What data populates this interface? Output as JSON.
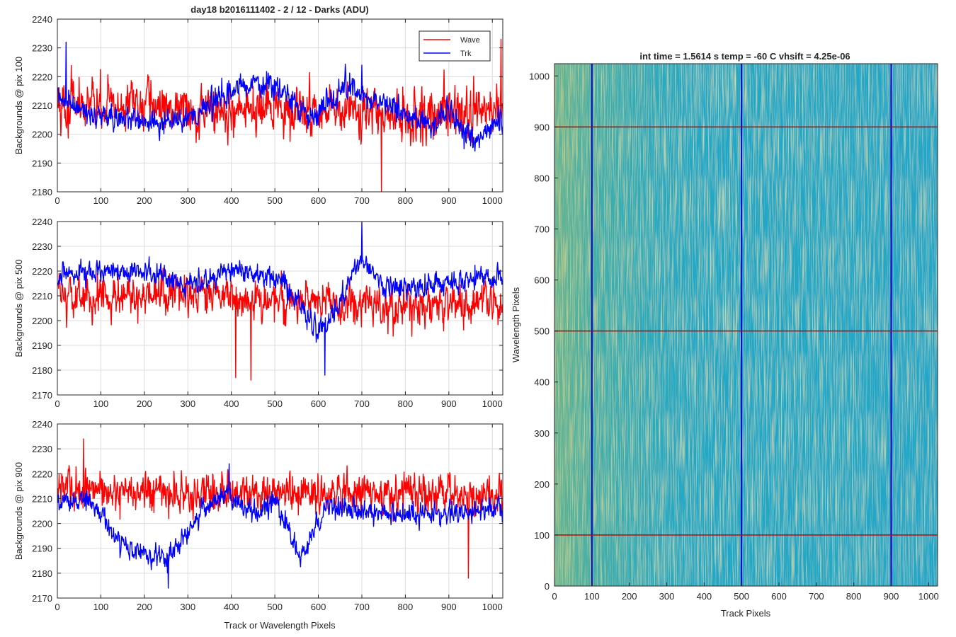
{
  "figure": {
    "title": "day18 b2016111402 - 2 / 12 - Darks (ADU)",
    "left_xlabel": "Track or Wavelength Pixels"
  },
  "chart_data": [
    {
      "type": "line",
      "ylabel": "Backgrounds @ pix 100",
      "xlim": [
        0,
        1024
      ],
      "ylim": [
        2180,
        2240
      ],
      "xticks": [
        0,
        100,
        200,
        300,
        400,
        500,
        600,
        700,
        800,
        900,
        1000
      ],
      "yticks": [
        2180,
        2190,
        2200,
        2210,
        2220,
        2230,
        2240
      ],
      "grid": true,
      "legend": {
        "placement": "top-right",
        "entries": [
          "Wave",
          "Trk"
        ]
      },
      "series": [
        {
          "name": "Wave",
          "color": "#ff0000",
          "mean": 2209,
          "noise": 8.5,
          "trend": [
            [
              0,
              2210
            ],
            [
              200,
              2210
            ],
            [
              400,
              2208
            ],
            [
              600,
              2208
            ],
            [
              800,
              2206
            ],
            [
              1024,
              2208
            ]
          ],
          "spikes": [
            [
              1020,
              2233
            ],
            [
              745,
              2180
            ]
          ]
        },
        {
          "name": "Trk",
          "color": "#0000ff",
          "mean": 2209,
          "noise": 4.5,
          "trend": [
            [
              0,
              2212
            ],
            [
              60,
              2208
            ],
            [
              150,
              2205
            ],
            [
              240,
              2204
            ],
            [
              330,
              2208
            ],
            [
              420,
              2217
            ],
            [
              500,
              2218
            ],
            [
              580,
              2205
            ],
            [
              660,
              2217
            ],
            [
              760,
              2210
            ],
            [
              850,
              2203
            ],
            [
              900,
              2208
            ],
            [
              960,
              2198
            ],
            [
              1024,
              2206
            ]
          ],
          "spikes": [
            [
              20,
              2232
            ],
            [
              700,
              2224
            ]
          ]
        }
      ]
    },
    {
      "type": "line",
      "ylabel": "Backgrounds @ pix 500",
      "xlim": [
        0,
        1024
      ],
      "ylim": [
        2170,
        2240
      ],
      "xticks": [
        0,
        100,
        200,
        300,
        400,
        500,
        600,
        700,
        800,
        900,
        1000
      ],
      "yticks": [
        2170,
        2180,
        2190,
        2200,
        2210,
        2220,
        2230,
        2240
      ],
      "grid": true,
      "series": [
        {
          "name": "Wave",
          "color": "#ff0000",
          "mean": 2208,
          "noise": 8,
          "trend": [
            [
              0,
              2210
            ],
            [
              300,
              2210
            ],
            [
              500,
              2208
            ],
            [
              700,
              2206
            ],
            [
              1024,
              2206
            ]
          ],
          "spikes": [
            [
              410,
              2177
            ],
            [
              445,
              2176
            ]
          ]
        },
        {
          "name": "Trk",
          "color": "#0000ff",
          "mean": 2215,
          "noise": 4.5,
          "trend": [
            [
              0,
              2218
            ],
            [
              100,
              2220
            ],
            [
              200,
              2220
            ],
            [
              300,
              2215
            ],
            [
              420,
              2220
            ],
            [
              520,
              2215
            ],
            [
              600,
              2196
            ],
            [
              650,
              2207
            ],
            [
              700,
              2226
            ],
            [
              750,
              2213
            ],
            [
              850,
              2214
            ],
            [
              1024,
              2218
            ]
          ],
          "spikes": [
            [
              700,
              2240
            ],
            [
              615,
              2178
            ]
          ]
        }
      ]
    },
    {
      "type": "line",
      "ylabel": "Backgrounds @ pix 900",
      "xlabel": "Track or Wavelength Pixels",
      "xlim": [
        0,
        1024
      ],
      "ylim": [
        2170,
        2240
      ],
      "xticks": [
        0,
        100,
        200,
        300,
        400,
        500,
        600,
        700,
        800,
        900,
        1000
      ],
      "yticks": [
        2170,
        2180,
        2190,
        2200,
        2210,
        2220,
        2230,
        2240
      ],
      "grid": true,
      "series": [
        {
          "name": "Wave",
          "color": "#ff0000",
          "mean": 2212,
          "noise": 8,
          "trend": [
            [
              0,
              2214
            ],
            [
              300,
              2212
            ],
            [
              600,
              2212
            ],
            [
              1024,
              2212
            ]
          ],
          "spikes": [
            [
              60,
              2234
            ],
            [
              945,
              2178
            ]
          ]
        },
        {
          "name": "Trk",
          "color": "#0000ff",
          "mean": 2203,
          "noise": 4.5,
          "trend": [
            [
              0,
              2208
            ],
            [
              80,
              2210
            ],
            [
              140,
              2192
            ],
            [
              200,
              2187
            ],
            [
              250,
              2186
            ],
            [
              320,
              2202
            ],
            [
              390,
              2212
            ],
            [
              450,
              2204
            ],
            [
              500,
              2210
            ],
            [
              560,
              2186
            ],
            [
              620,
              2207
            ],
            [
              680,
              2205
            ],
            [
              800,
              2203
            ],
            [
              1024,
              2206
            ]
          ],
          "spikes": [
            [
              255,
              2174
            ],
            [
              395,
              2224
            ]
          ]
        }
      ]
    },
    {
      "type": "heatmap",
      "title": "int time = 1.5614 s    temp = -60 C    vhsift = 4.25e-06",
      "xlabel": "Track Pixels",
      "ylabel": "Wavelength Pixels",
      "xlim": [
        0,
        1024
      ],
      "ylim": [
        0,
        1024
      ],
      "xticks": [
        0,
        100,
        200,
        300,
        400,
        500,
        600,
        700,
        800,
        900,
        1000
      ],
      "yticks": [
        0,
        100,
        200,
        300,
        400,
        500,
        600,
        700,
        800,
        900,
        1000
      ],
      "colormap": [
        "#2c9fd0",
        "#1bb0bd",
        "#3cbc9a",
        "#86c167",
        "#c4be4a"
      ],
      "vertical_markers": {
        "color": "#0000cc",
        "x": [
          100,
          500,
          900
        ]
      },
      "horizontal_markers": {
        "color": "#cc0000",
        "y": [
          100,
          500,
          900
        ]
      }
    }
  ]
}
